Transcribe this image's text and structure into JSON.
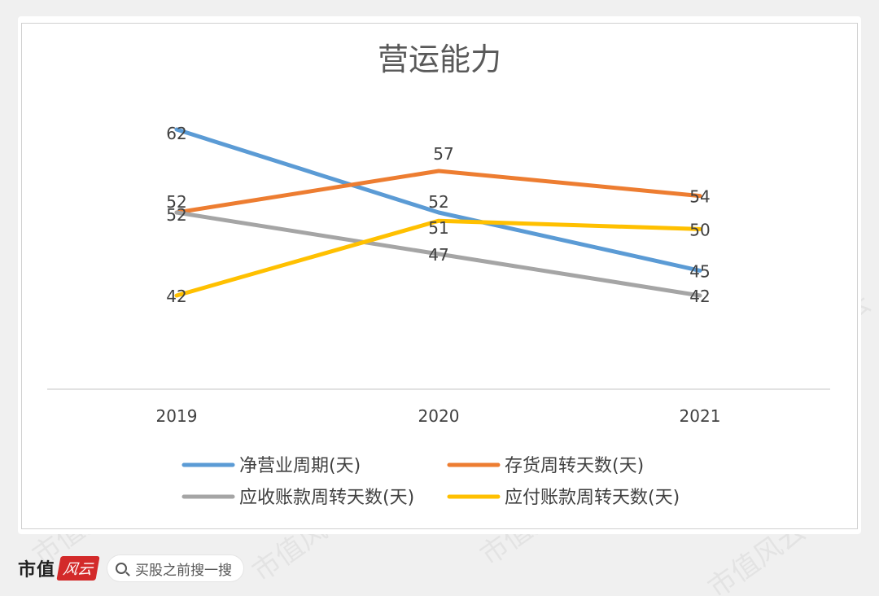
{
  "chart_data": {
    "type": "line",
    "title": "营运能力",
    "categories": [
      "2019",
      "2020",
      "2021"
    ],
    "series": [
      {
        "name": "净营业周期(天)",
        "color": "#5b9bd5",
        "values": [
          62,
          52,
          45
        ]
      },
      {
        "name": "存货周转天数(天)",
        "color": "#ed7d31",
        "values": [
          52,
          57,
          54
        ]
      },
      {
        "name": "应收账款周转天数(天)",
        "color": "#a5a5a5",
        "values": [
          52,
          47,
          42
        ]
      },
      {
        "name": "应付账款周转天数(天)",
        "color": "#ffc000",
        "values": [
          42,
          51,
          50
        ]
      }
    ],
    "ylim": [
      30,
      65
    ],
    "grid": false,
    "legend_position": "bottom"
  },
  "watermark": "市值风云",
  "footer": {
    "brand": "市值",
    "brand_logo": "风云",
    "search_hint": "买股之前搜一搜"
  }
}
